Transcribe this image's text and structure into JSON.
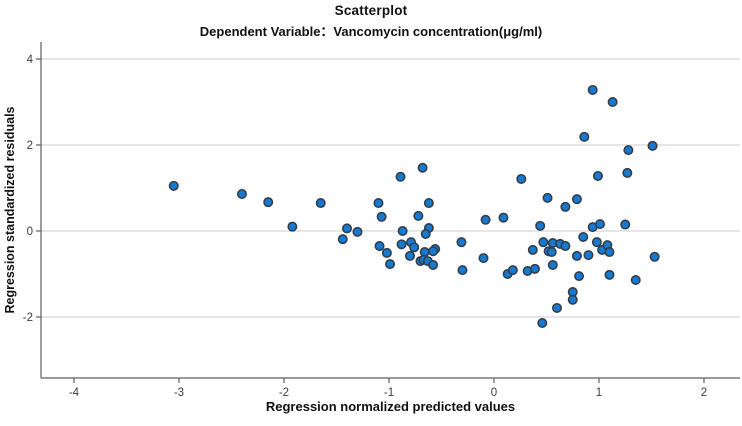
{
  "chart_data": {
    "type": "scatter",
    "title": "Scatterplot",
    "subtitle": "Dependent Variable：Vancomycin concentration(μg/ml)",
    "xlabel": "Regression normalized predicted values",
    "ylabel": "Regression standardized residuals",
    "xlim": [
      -4.314,
      2.343
    ],
    "ylim": [
      -3.419,
      4.395
    ],
    "xticks": [
      -4,
      -3,
      -2,
      -1,
      0,
      1,
      2
    ],
    "yticks": [
      -2,
      0,
      2,
      4
    ],
    "grid": "horizontal",
    "legend": "none",
    "marker": {
      "fill": "#177ad2",
      "stroke": "#323e49",
      "radius": 4.2,
      "stroke_width": 1.6
    },
    "colors": {
      "gridline": "#d8d8d8",
      "axis": "#5f5f5f",
      "tick_label": "#3d3d3d",
      "title_text": "#111111"
    },
    "points": [
      [
        -3.05,
        1.05
      ],
      [
        -2.4,
        0.86
      ],
      [
        -2.15,
        0.67
      ],
      [
        -1.92,
        0.1
      ],
      [
        -1.65,
        0.65
      ],
      [
        -1.4,
        0.06
      ],
      [
        -1.3,
        -0.02
      ],
      [
        -1.44,
        -0.19
      ],
      [
        -1.1,
        0.65
      ],
      [
        -1.07,
        0.33
      ],
      [
        -0.89,
        1.26
      ],
      [
        -0.68,
        1.47
      ],
      [
        -0.72,
        0.35
      ],
      [
        -0.62,
        0.65
      ],
      [
        -0.87,
        0.0
      ],
      [
        -0.62,
        0.07
      ],
      [
        -0.65,
        -0.07
      ],
      [
        -1.09,
        -0.35
      ],
      [
        -1.02,
        -0.51
      ],
      [
        -0.99,
        -0.77
      ],
      [
        -0.88,
        -0.31
      ],
      [
        -0.79,
        -0.26
      ],
      [
        -0.76,
        -0.38
      ],
      [
        -0.8,
        -0.58
      ],
      [
        -0.66,
        -0.49
      ],
      [
        -0.7,
        -0.7
      ],
      [
        -0.67,
        -0.67
      ],
      [
        -0.63,
        -0.7
      ],
      [
        -0.56,
        -0.42
      ],
      [
        -0.58,
        -0.47
      ],
      [
        -0.58,
        -0.79
      ],
      [
        -0.31,
        -0.26
      ],
      [
        -0.3,
        -0.91
      ],
      [
        -0.08,
        0.26
      ],
      [
        -0.1,
        -0.63
      ],
      [
        0.09,
        0.31
      ],
      [
        0.13,
        -1.0
      ],
      [
        0.18,
        -0.91
      ],
      [
        0.26,
        1.21
      ],
      [
        0.32,
        -0.93
      ],
      [
        0.39,
        -0.88
      ],
      [
        0.37,
        -0.44
      ],
      [
        0.44,
        0.12
      ],
      [
        0.46,
        -2.14
      ],
      [
        0.47,
        -0.26
      ],
      [
        0.51,
        0.77
      ],
      [
        0.52,
        -0.47
      ],
      [
        0.55,
        -0.49
      ],
      [
        0.56,
        -0.28
      ],
      [
        0.56,
        -0.79
      ],
      [
        0.6,
        -1.79
      ],
      [
        0.63,
        -0.3
      ],
      [
        0.68,
        0.56
      ],
      [
        0.68,
        -0.35
      ],
      [
        0.75,
        -1.42
      ],
      [
        0.75,
        -1.6
      ],
      [
        0.79,
        0.74
      ],
      [
        0.79,
        -0.58
      ],
      [
        0.81,
        -1.05
      ],
      [
        0.85,
        -0.14
      ],
      [
        0.86,
        2.19
      ],
      [
        0.9,
        -0.56
      ],
      [
        0.94,
        3.28
      ],
      [
        0.94,
        0.09
      ],
      [
        0.98,
        -0.26
      ],
      [
        0.99,
        1.28
      ],
      [
        1.01,
        0.16
      ],
      [
        1.03,
        -0.44
      ],
      [
        1.08,
        -0.33
      ],
      [
        1.1,
        -0.49
      ],
      [
        1.1,
        -1.02
      ],
      [
        1.13,
        3.0
      ],
      [
        1.25,
        0.15
      ],
      [
        1.27,
        1.35
      ],
      [
        1.28,
        1.88
      ],
      [
        1.35,
        -1.14
      ],
      [
        1.51,
        1.98
      ],
      [
        1.53,
        -0.6
      ]
    ]
  }
}
